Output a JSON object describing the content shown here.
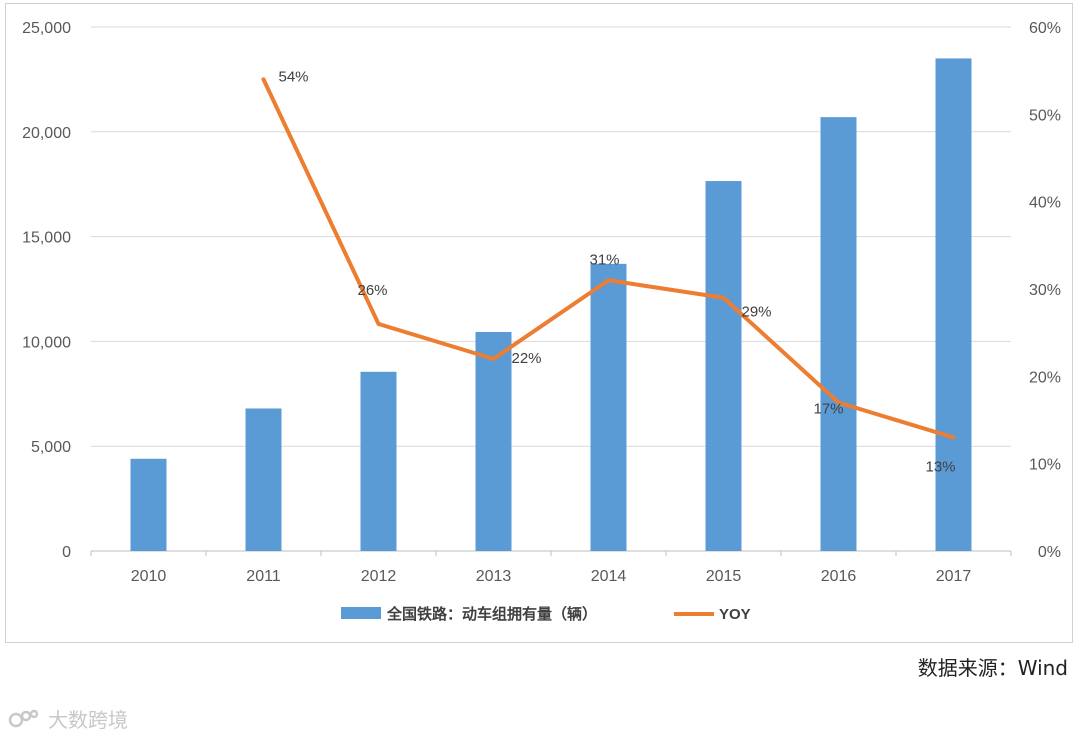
{
  "chart_data": {
    "type": "bar+line",
    "categories": [
      "2010",
      "2011",
      "2012",
      "2013",
      "2014",
      "2015",
      "2016",
      "2017"
    ],
    "series": [
      {
        "name": "全国铁路：动车组拥有量（辆）",
        "type": "bar",
        "axis": "left",
        "color": "#5b9bd5",
        "values": [
          4400,
          6800,
          8550,
          10450,
          13700,
          17650,
          20700,
          23500
        ]
      },
      {
        "name": "YOY",
        "type": "line",
        "axis": "right",
        "color": "#ed7d31",
        "values": [
          null,
          54,
          26,
          22,
          31,
          29,
          17,
          13
        ],
        "data_labels": [
          "",
          "54%",
          "26%",
          "22%",
          "31%",
          "29%",
          "17%",
          "13%"
        ]
      }
    ],
    "y_left": {
      "min": 0,
      "max": 25000,
      "ticks": [
        0,
        5000,
        10000,
        15000,
        20000,
        25000
      ],
      "tick_labels": [
        "0",
        "5,000",
        "10,000",
        "15,000",
        "20,000",
        "25,000"
      ]
    },
    "y_right": {
      "min": 0,
      "max": 60,
      "ticks": [
        0,
        10,
        20,
        30,
        40,
        50,
        60
      ],
      "tick_labels": [
        "0%",
        "10%",
        "20%",
        "30%",
        "40%",
        "50%",
        "60%"
      ]
    },
    "grid": true,
    "legend_position": "bottom"
  },
  "source_note": "数据来源：Wind",
  "watermark": "大数跨境"
}
